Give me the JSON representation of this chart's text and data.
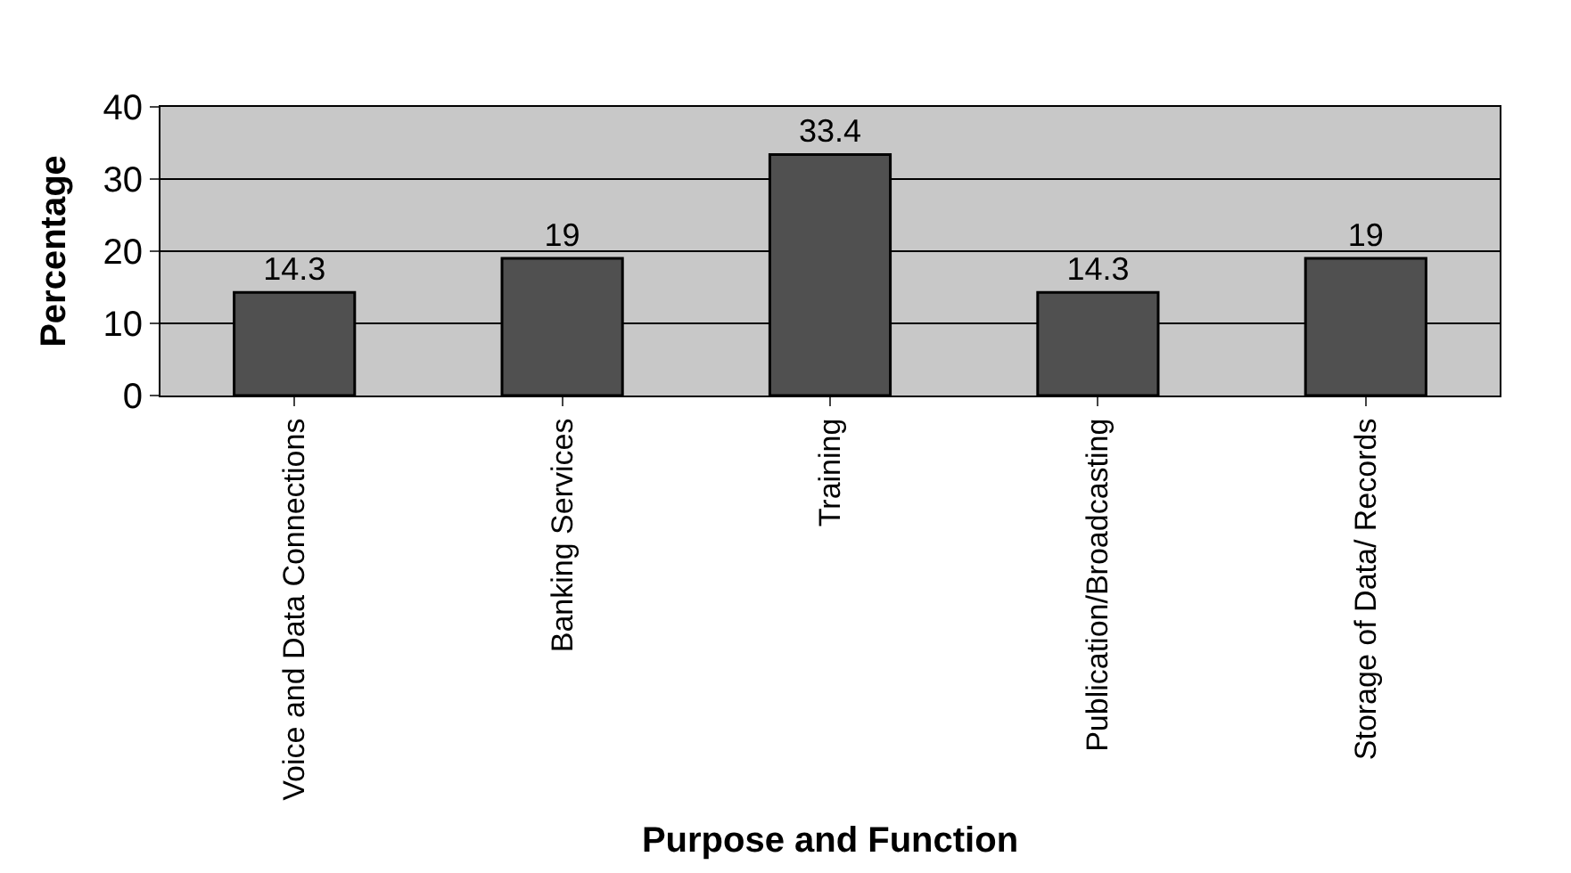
{
  "chart_data": {
    "type": "bar",
    "xlabel": "Purpose and Function",
    "ylabel": "Percentage",
    "categories": [
      "Voice and Data Connections",
      "Banking Services",
      "Training",
      "Publication/Broadcasting",
      "Storage of Data/ Records"
    ],
    "values": [
      14.3,
      19,
      33.4,
      14.3,
      19
    ],
    "color": "#505050",
    "data_labels": true,
    "ylim": [
      0,
      40
    ],
    "yticks": [
      0,
      10,
      20,
      30,
      40
    ],
    "grid": "y",
    "legend": false
  }
}
